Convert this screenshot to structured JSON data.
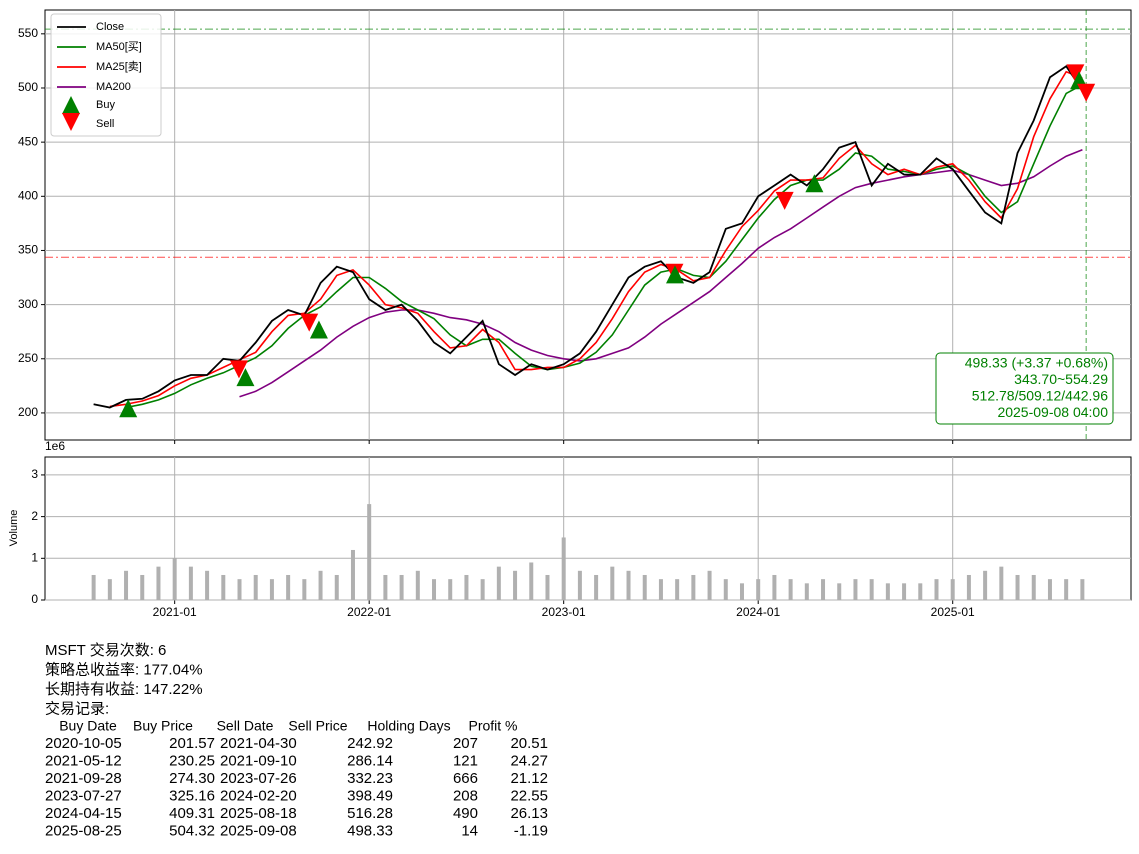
{
  "chart_data": [
    {
      "type": "line",
      "x": [
        "2020-08",
        "2020-09",
        "2020-10",
        "2020-11",
        "2020-12",
        "2021-01",
        "2021-02",
        "2021-03",
        "2021-04",
        "2021-05",
        "2021-06",
        "2021-07",
        "2021-08",
        "2021-09",
        "2021-10",
        "2021-11",
        "2021-12",
        "2022-01",
        "2022-02",
        "2022-03",
        "2022-04",
        "2022-05",
        "2022-06",
        "2022-07",
        "2022-08",
        "2022-09",
        "2022-10",
        "2022-11",
        "2022-12",
        "2023-01",
        "2023-02",
        "2023-03",
        "2023-04",
        "2023-05",
        "2023-06",
        "2023-07",
        "2023-08",
        "2023-09",
        "2023-10",
        "2023-11",
        "2023-12",
        "2024-01",
        "2024-02",
        "2024-03",
        "2024-04",
        "2024-05",
        "2024-06",
        "2024-07",
        "2024-08",
        "2024-09",
        "2024-10",
        "2024-11",
        "2024-12",
        "2025-01",
        "2025-02",
        "2025-03",
        "2025-04",
        "2025-05",
        "2025-06",
        "2025-07",
        "2025-08",
        "2025-09"
      ],
      "series": [
        {
          "name": "Close",
          "color": "#000000",
          "values": [
            208,
            205,
            212,
            213,
            220,
            230,
            235,
            235,
            250,
            248,
            265,
            285,
            295,
            290,
            320,
            335,
            330,
            305,
            295,
            300,
            285,
            265,
            255,
            270,
            285,
            245,
            235,
            245,
            240,
            245,
            255,
            275,
            300,
            325,
            335,
            340,
            325,
            320,
            330,
            370,
            375,
            400,
            410,
            420,
            410,
            425,
            445,
            450,
            410,
            430,
            420,
            420,
            435,
            425,
            405,
            385,
            375,
            440,
            470,
            510,
            520,
            498
          ]
        },
        {
          "name": "MA50[买]",
          "color": "#008000",
          "values": [
            null,
            null,
            205,
            208,
            212,
            218,
            226,
            232,
            237,
            244,
            251,
            262,
            278,
            290,
            298,
            312,
            325,
            325,
            315,
            303,
            295,
            287,
            272,
            262,
            268,
            268,
            255,
            243,
            240,
            242,
            246,
            256,
            272,
            295,
            318,
            330,
            333,
            327,
            325,
            340,
            360,
            380,
            397,
            410,
            415,
            415,
            425,
            440,
            437,
            425,
            423,
            420,
            425,
            428,
            420,
            400,
            385,
            395,
            430,
            465,
            495,
            503
          ]
        },
        {
          "name": "MA25[卖]",
          "color": "#ff0000",
          "values": [
            null,
            206,
            208,
            211,
            216,
            225,
            232,
            235,
            242,
            249,
            256,
            275,
            290,
            292,
            305,
            327,
            332,
            318,
            300,
            297,
            292,
            275,
            260,
            262,
            277,
            265,
            240,
            240,
            242,
            242,
            250,
            265,
            287,
            312,
            330,
            337,
            332,
            322,
            325,
            350,
            372,
            387,
            405,
            415,
            415,
            417,
            435,
            447,
            430,
            420,
            425,
            420,
            427,
            430,
            415,
            395,
            380,
            407,
            455,
            490,
            515,
            509
          ]
        },
        {
          "name": "MA200",
          "color": "#800080",
          "values": [
            null,
            null,
            null,
            null,
            null,
            null,
            null,
            null,
            null,
            215,
            220,
            228,
            238,
            248,
            258,
            270,
            280,
            288,
            293,
            295,
            295,
            292,
            288,
            286,
            282,
            275,
            265,
            258,
            253,
            250,
            248,
            250,
            255,
            260,
            270,
            282,
            292,
            302,
            312,
            325,
            338,
            352,
            362,
            370,
            380,
            390,
            400,
            408,
            412,
            415,
            418,
            420,
            422,
            424,
            420,
            415,
            410,
            412,
            418,
            428,
            437,
            443
          ]
        }
      ],
      "buy": {
        "name": "Buy",
        "color": "#008000"
      },
      "sell": {
        "name": "Sell",
        "color": "#ff0000"
      },
      "hlines": [
        {
          "value": 343.7,
          "color": "#ff0000"
        },
        {
          "value": 554.29,
          "color": "#008000"
        }
      ],
      "vline": {
        "x": "2025-09-08",
        "color": "#008000"
      },
      "info": [
        "498.33 (+3.37 +0.68%)",
        "343.70~554.29",
        "512.78/509.12/442.96",
        "2025-09-08 04:00"
      ],
      "xlim": [
        "2020-05",
        "2025-12"
      ],
      "ylim": [
        175,
        572
      ],
      "yticks": [
        200,
        250,
        300,
        350,
        400,
        450,
        500,
        550
      ],
      "grid": true
    },
    {
      "type": "bar",
      "x": [
        "2020-08",
        "2020-09",
        "2020-10",
        "2020-11",
        "2020-12",
        "2021-01",
        "2021-02",
        "2021-03",
        "2021-04",
        "2021-05",
        "2021-06",
        "2021-07",
        "2021-08",
        "2021-09",
        "2021-10",
        "2021-11",
        "2021-12",
        "2022-01",
        "2022-02",
        "2022-03",
        "2022-04",
        "2022-05",
        "2022-06",
        "2022-07",
        "2022-08",
        "2022-09",
        "2022-10",
        "2022-11",
        "2022-12",
        "2023-01",
        "2023-02",
        "2023-03",
        "2023-04",
        "2023-05",
        "2023-06",
        "2023-07",
        "2023-08",
        "2023-09",
        "2023-10",
        "2023-11",
        "2023-12",
        "2024-01",
        "2024-02",
        "2024-03",
        "2024-04",
        "2024-05",
        "2024-06",
        "2024-07",
        "2024-08",
        "2024-09",
        "2024-10",
        "2024-11",
        "2024-12",
        "2025-01",
        "2025-02",
        "2025-03",
        "2025-04",
        "2025-05",
        "2025-06",
        "2025-07",
        "2025-08",
        "2025-09"
      ],
      "values": [
        0.6,
        0.5,
        0.7,
        0.6,
        0.8,
        1.0,
        0.8,
        0.7,
        0.6,
        0.5,
        0.6,
        0.5,
        0.6,
        0.5,
        0.7,
        0.6,
        1.2,
        2.3,
        0.6,
        0.6,
        0.7,
        0.5,
        0.5,
        0.6,
        0.5,
        0.8,
        0.7,
        0.9,
        0.6,
        1.5,
        0.7,
        0.6,
        0.8,
        0.7,
        0.6,
        0.5,
        0.5,
        0.6,
        0.7,
        0.5,
        0.4,
        0.5,
        0.6,
        0.5,
        0.4,
        0.5,
        0.4,
        0.5,
        0.5,
        0.4,
        0.4,
        0.4,
        0.5,
        0.5,
        0.6,
        0.7,
        0.8,
        0.6,
        0.6,
        0.5,
        0.5,
        0.5
      ],
      "color": "#b0b0b0",
      "y_label": "Volume",
      "offset_label": "1e6",
      "xlim": [
        "2020-05",
        "2025-12"
      ],
      "xticks": [
        "2021-01",
        "2022-01",
        "2023-01",
        "2024-01",
        "2025-01"
      ],
      "ylim": [
        0,
        3.43
      ],
      "yticks": [
        0,
        1,
        2,
        3
      ],
      "grid": true
    }
  ],
  "summary": [
    "MSFT 交易次数: 6",
    "策略总收益率: 177.04%",
    "长期持有收益: 147.22%",
    "交易记录:"
  ],
  "trades": {
    "header": [
      "Buy Date",
      "Buy Price",
      "Sell Date",
      "Sell Price",
      "Holding Days",
      "Profit %"
    ],
    "rows": [
      [
        "2020-10-05",
        "201.57",
        "2021-04-30",
        "242.92",
        "207",
        "20.51"
      ],
      [
        "2021-05-12",
        "230.25",
        "2021-09-10",
        "286.14",
        "121",
        "24.27"
      ],
      [
        "2021-09-28",
        "274.30",
        "2023-07-26",
        "332.23",
        "666",
        "21.12"
      ],
      [
        "2023-07-27",
        "325.16",
        "2024-02-20",
        "398.49",
        "208",
        "22.55"
      ],
      [
        "2024-04-15",
        "409.31",
        "2025-08-18",
        "516.28",
        "490",
        "26.13"
      ],
      [
        "2025-08-25",
        "504.32",
        "2025-09-08",
        "498.33",
        "14",
        "-1.19"
      ]
    ]
  }
}
